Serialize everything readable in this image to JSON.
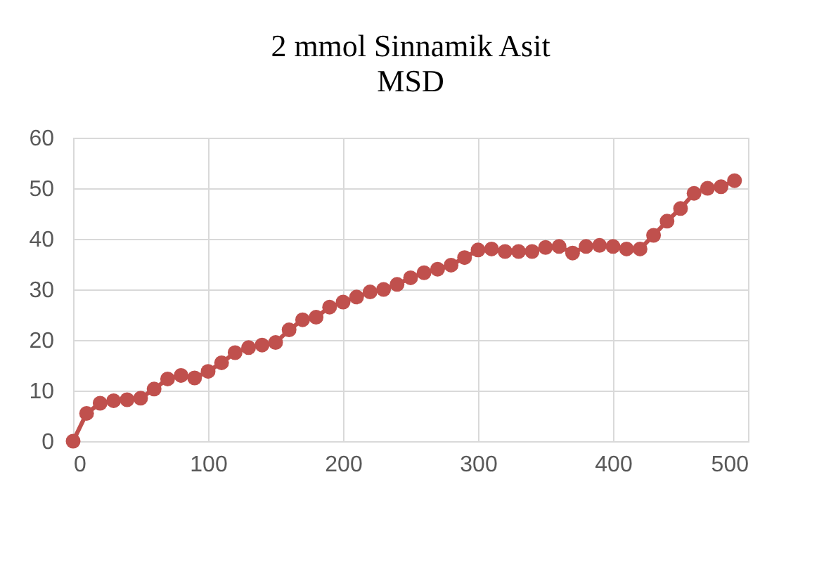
{
  "chart_data": {
    "type": "line",
    "title": "2 mmol Sinnamik Asit",
    "subtitle": "MSD",
    "x": [
      0,
      10,
      20,
      30,
      40,
      50,
      60,
      70,
      80,
      90,
      100,
      110,
      120,
      130,
      140,
      150,
      160,
      170,
      180,
      190,
      200,
      210,
      220,
      230,
      240,
      250,
      260,
      270,
      280,
      290,
      300,
      310,
      320,
      330,
      340,
      350,
      360,
      370,
      380,
      390,
      400,
      410,
      420,
      430,
      440,
      450,
      460,
      470,
      480,
      490
    ],
    "series": [
      {
        "color": "#c0504d",
        "values": [
          0,
          5.5,
          7.5,
          8,
          8.2,
          8.5,
          10.3,
          12.3,
          13,
          12.5,
          13.8,
          15.5,
          17.5,
          18.5,
          19,
          19.5,
          22,
          24,
          24.5,
          26.5,
          27.5,
          28.5,
          29.5,
          30,
          31,
          32.3,
          33.3,
          34,
          34.8,
          36.3,
          37.8,
          38,
          37.5,
          37.5,
          37.5,
          38.3,
          38.5,
          37.2,
          38.5,
          38.7,
          38.5,
          38,
          38,
          40.7,
          43.5,
          46,
          49,
          50,
          50.3,
          51.5
        ]
      }
    ],
    "xlim": [
      0,
      500
    ],
    "xticks": [
      0,
      100,
      200,
      300,
      400,
      500
    ],
    "ylim": [
      0,
      60
    ],
    "yticks": [
      0,
      10,
      20,
      30,
      40,
      50,
      60
    ],
    "grid": true,
    "marker": "circle",
    "line_style": "solid"
  }
}
